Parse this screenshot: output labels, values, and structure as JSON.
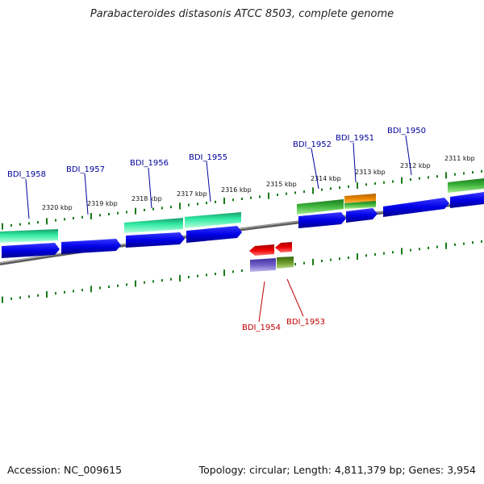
{
  "title": "Parabacteroides distasonis ATCC 8503, complete genome",
  "footer": {
    "accession": "Accession: NC_009615",
    "summary": "Topology: circular; Length: 4,811,379 bp; Genes: 3,954"
  },
  "scale_ticks": [
    {
      "label": "2320 kbp"
    },
    {
      "label": "2319 kbp"
    },
    {
      "label": "2318 kbp"
    },
    {
      "label": "2317 kbp"
    },
    {
      "label": "2316 kbp"
    },
    {
      "label": "2315 kbp"
    },
    {
      "label": "2314 kbp"
    },
    {
      "label": "2313 kbp"
    },
    {
      "label": "2312 kbp"
    },
    {
      "label": "2311 kbp"
    }
  ],
  "genes_forward": [
    {
      "name": "BDI_1958"
    },
    {
      "name": "BDI_1957"
    },
    {
      "name": "BDI_1956"
    },
    {
      "name": "BDI_1955"
    },
    {
      "name": "BDI_1952"
    },
    {
      "name": "BDI_1951"
    },
    {
      "name": "BDI_1950"
    }
  ],
  "genes_reverse": [
    {
      "name": "BDI_1954"
    },
    {
      "name": "BDI_1953"
    }
  ],
  "colors": {
    "forward_label": "#00009a",
    "reverse_label": "#c00000",
    "cds_blue": "#0000e6",
    "gene_teal": "#2ee8a0",
    "gene_green": "#3cb43c",
    "gene_orange": "#f08c00",
    "rev_red": "#ee0000",
    "rev_purple": "#7060c8",
    "rev_olive": "#6a9a2a",
    "tick_green": "#1a7a1a",
    "backbone": "#888888"
  }
}
